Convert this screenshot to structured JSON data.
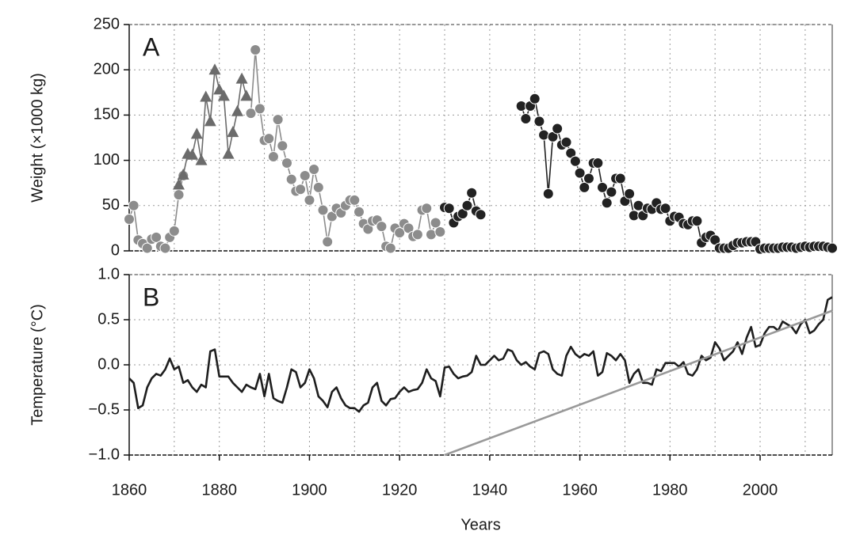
{
  "chart_data": [
    {
      "type": "line",
      "label": "A",
      "ylabel": "Weight (×1000 kg)",
      "xlim": [
        1860,
        2016
      ],
      "ylim": [
        0,
        250
      ],
      "xticks": [
        1860,
        1880,
        1900,
        1920,
        1940,
        1960,
        1980,
        2000
      ],
      "xminorticks": [
        1870,
        1890,
        1910,
        1930,
        1950,
        1970,
        1990,
        2010
      ],
      "yticks": [
        0,
        50,
        100,
        150,
        200,
        250
      ],
      "grid": true,
      "series": [
        {
          "color": "#8c8c8c",
          "marker": "circle",
          "x": [
            1860,
            1861,
            1862,
            1863,
            1864,
            1865,
            1866,
            1867,
            1868,
            1869,
            1870,
            1871,
            1872,
            1880,
            1887,
            1888,
            1889,
            1890,
            1891,
            1892,
            1893,
            1894,
            1895,
            1896,
            1897,
            1898,
            1899,
            1900,
            1901,
            1902,
            1903,
            1904,
            1905,
            1906,
            1907,
            1908,
            1909,
            1910,
            1911,
            1912,
            1913,
            1914,
            1915,
            1916,
            1917,
            1918,
            1919,
            1920,
            1921,
            1922,
            1923,
            1924,
            1925,
            1926,
            1927,
            1928,
            1929
          ],
          "values": [
            35,
            50,
            12,
            8,
            3,
            13,
            15,
            5,
            3,
            15,
            22,
            62,
            83,
            null,
            152,
            222,
            157,
            122,
            124,
            104,
            145,
            116,
            97,
            79,
            66,
            68,
            83,
            56,
            90,
            70,
            45,
            10,
            38,
            47,
            42,
            50,
            56,
            56,
            43,
            30,
            24,
            33,
            34,
            27,
            5,
            3,
            25,
            20,
            30,
            25,
            16,
            18,
            45,
            47,
            18,
            31,
            21
          ]
        },
        {
          "color": "#6b6b6b",
          "marker": "triangle",
          "x": [
            1871,
            1872,
            1873,
            1874,
            1875,
            1876,
            1877,
            1878,
            1879,
            1880,
            1881,
            1882,
            1883,
            1884,
            1885,
            1886
          ],
          "values": [
            73,
            84,
            107,
            106,
            129,
            100,
            170,
            143,
            200,
            178,
            171,
            107,
            131,
            154,
            190,
            171
          ]
        },
        {
          "color": "#222222",
          "marker": "circle",
          "x": [
            1930,
            1931,
            1932,
            1933,
            1934,
            1935,
            1936,
            1937,
            1938,
            1939,
            1947,
            1948,
            1949,
            1950,
            1951,
            1952,
            1953,
            1954,
            1955,
            1956,
            1957,
            1958,
            1959,
            1960,
            1961,
            1962,
            1963,
            1964,
            1965,
            1966,
            1967,
            1968,
            1969,
            1970,
            1971,
            1972,
            1973,
            1974,
            1975,
            1976,
            1977,
            1978,
            1979,
            1980,
            1981,
            1982,
            1983,
            1984,
            1985,
            1986,
            1987,
            1988,
            1989,
            1990,
            1991,
            1992,
            1993,
            1994,
            1995,
            1996,
            1997,
            1998,
            1999,
            2000,
            2001,
            2002,
            2003,
            2004,
            2005,
            2006,
            2007,
            2008,
            2009,
            2010,
            2011,
            2012,
            2013,
            2014,
            2015,
            2016
          ],
          "values": [
            48,
            47,
            31,
            38,
            41,
            50,
            64,
            44,
            40,
            null,
            160,
            146,
            160,
            168,
            143,
            128,
            63,
            126,
            135,
            117,
            120,
            108,
            99,
            86,
            70,
            80,
            97,
            97,
            70,
            53,
            65,
            80,
            80,
            55,
            63,
            39,
            50,
            39,
            47,
            46,
            53,
            46,
            47,
            33,
            38,
            37,
            30,
            29,
            33,
            33,
            9,
            15,
            17,
            12,
            3,
            3,
            3,
            6,
            9,
            9,
            10,
            10,
            10,
            2,
            3,
            3,
            3,
            3,
            4,
            4,
            4,
            3,
            4,
            5,
            4,
            5,
            5,
            5,
            4,
            3
          ]
        }
      ]
    },
    {
      "type": "line",
      "label": "B",
      "ylabel": "Temperature (°C)",
      "xlabel": "Years",
      "xlim": [
        1860,
        2016
      ],
      "ylim": [
        -1.0,
        1.0
      ],
      "xticks": [
        1860,
        1880,
        1900,
        1920,
        1940,
        1960,
        1980,
        2000
      ],
      "xminorticks": [
        1870,
        1890,
        1910,
        1930,
        1950,
        1970,
        1990,
        2010
      ],
      "yticks": [
        {
          "value": -1.0,
          "label": "−1.0"
        },
        {
          "value": -0.5,
          "label": "−0.5"
        },
        {
          "value": 0.0,
          "label": "0.0"
        },
        0.5,
        {
          "value": 1.0,
          "label": "1.0"
        }
      ],
      "grid": true,
      "series": [
        {
          "color": "#1e1e1e",
          "x": [
            1860,
            1861,
            1862,
            1863,
            1864,
            1865,
            1866,
            1867,
            1868,
            1869,
            1870,
            1871,
            1872,
            1873,
            1874,
            1875,
            1876,
            1877,
            1878,
            1879,
            1880,
            1881,
            1882,
            1883,
            1884,
            1885,
            1886,
            1887,
            1888,
            1889,
            1890,
            1891,
            1892,
            1893,
            1894,
            1895,
            1896,
            1897,
            1898,
            1899,
            1900,
            1901,
            1902,
            1903,
            1904,
            1905,
            1906,
            1907,
            1908,
            1909,
            1910,
            1911,
            1912,
            1913,
            1914,
            1915,
            1916,
            1917,
            1918,
            1919,
            1920,
            1921,
            1922,
            1923,
            1924,
            1925,
            1926,
            1927,
            1928,
            1929,
            1930,
            1931,
            1932,
            1933,
            1934,
            1935,
            1936,
            1937,
            1938,
            1939,
            1940,
            1941,
            1942,
            1943,
            1944,
            1945,
            1946,
            1947,
            1948,
            1949,
            1950,
            1951,
            1952,
            1953,
            1954,
            1955,
            1956,
            1957,
            1958,
            1959,
            1960,
            1961,
            1962,
            1963,
            1964,
            1965,
            1966,
            1967,
            1968,
            1969,
            1970,
            1971,
            1972,
            1973,
            1974,
            1975,
            1976,
            1977,
            1978,
            1979,
            1980,
            1981,
            1982,
            1983,
            1984,
            1985,
            1986,
            1987,
            1988,
            1989,
            1990,
            1991,
            1992,
            1993,
            1994,
            1995,
            1996,
            1997,
            1998,
            1999,
            2000,
            2001,
            2002,
            2003,
            2004,
            2005,
            2006,
            2007,
            2008,
            2009,
            2010,
            2011,
            2012,
            2013,
            2014,
            2015,
            2016
          ],
          "values": [
            -0.15,
            -0.2,
            -0.48,
            -0.45,
            -0.25,
            -0.15,
            -0.1,
            -0.12,
            -0.05,
            0.07,
            -0.05,
            -0.02,
            -0.2,
            -0.17,
            -0.25,
            -0.3,
            -0.22,
            -0.25,
            0.15,
            0.17,
            -0.13,
            -0.13,
            -0.13,
            -0.2,
            -0.25,
            -0.3,
            -0.22,
            -0.25,
            -0.27,
            -0.1,
            -0.35,
            -0.1,
            -0.37,
            -0.4,
            -0.42,
            -0.25,
            -0.05,
            -0.08,
            -0.25,
            -0.2,
            -0.05,
            -0.15,
            -0.35,
            -0.4,
            -0.47,
            -0.3,
            -0.25,
            -0.37,
            -0.45,
            -0.48,
            -0.48,
            -0.52,
            -0.45,
            -0.42,
            -0.25,
            -0.2,
            -0.4,
            -0.45,
            -0.38,
            -0.37,
            -0.3,
            -0.25,
            -0.3,
            -0.28,
            -0.27,
            -0.2,
            -0.05,
            -0.15,
            -0.18,
            -0.35,
            -0.03,
            -0.02,
            -0.1,
            -0.15,
            -0.13,
            -0.12,
            -0.08,
            0.1,
            0.0,
            0.0,
            0.05,
            0.1,
            0.05,
            0.07,
            0.17,
            0.15,
            0.05,
            0.0,
            0.03,
            -0.02,
            -0.05,
            0.13,
            0.15,
            0.12,
            -0.05,
            -0.1,
            -0.12,
            0.1,
            0.2,
            0.12,
            0.08,
            0.12,
            0.1,
            0.15,
            -0.12,
            -0.08,
            0.13,
            0.1,
            0.05,
            0.12,
            0.05,
            -0.2,
            -0.1,
            -0.05,
            -0.2,
            -0.2,
            -0.22,
            -0.05,
            -0.07,
            0.02,
            0.02,
            0.02,
            -0.02,
            0.03,
            -0.1,
            -0.12,
            -0.05,
            0.1,
            0.05,
            0.08,
            0.25,
            0.18,
            0.05,
            0.1,
            0.15,
            0.25,
            0.12,
            0.3,
            0.42,
            0.2,
            0.22,
            0.35,
            0.42,
            0.42,
            0.38,
            0.48,
            0.45,
            0.42,
            0.35,
            0.45,
            0.5,
            0.35,
            0.38,
            0.45,
            0.5,
            0.72,
            0.75
          ]
        },
        {
          "color": "#999999",
          "x": [
            1930,
            2016
          ],
          "values": [
            -1.0,
            0.6
          ]
        }
      ]
    }
  ]
}
